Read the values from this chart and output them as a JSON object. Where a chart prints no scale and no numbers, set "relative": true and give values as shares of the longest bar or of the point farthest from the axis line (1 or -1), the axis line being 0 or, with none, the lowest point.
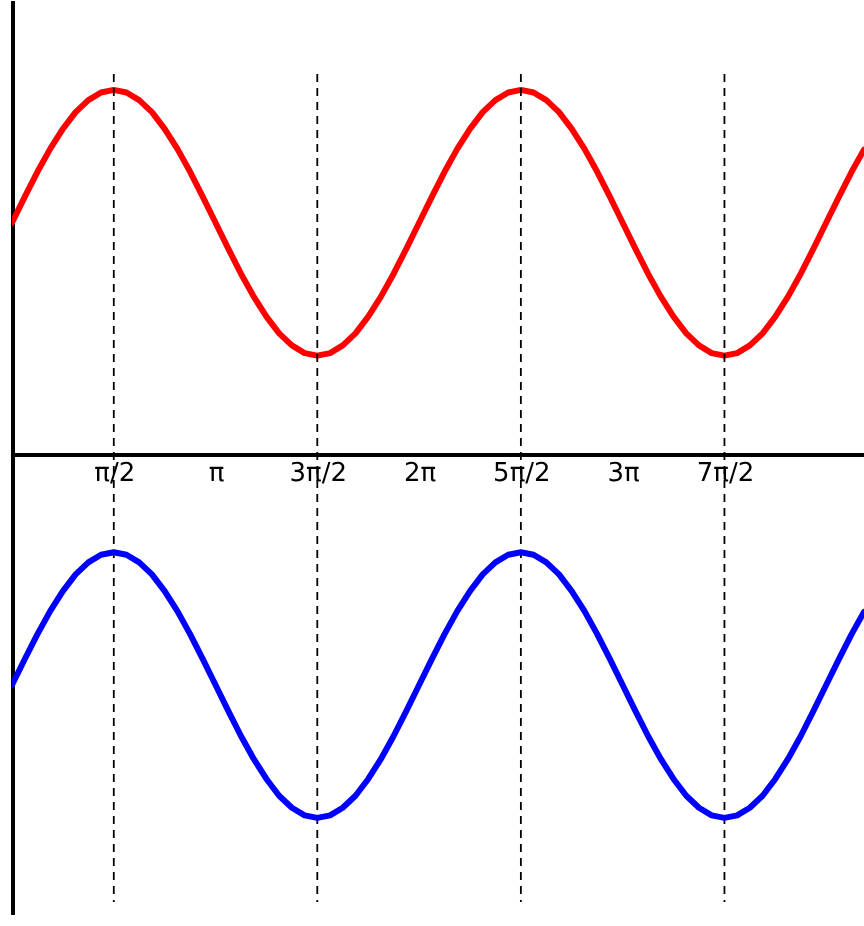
{
  "chart_data": {
    "type": "line",
    "relative": true,
    "tick_labels": "x",
    "xlim": [
      0,
      13.15
    ],
    "xticks": [
      {
        "value": 1.571,
        "label": "π/2"
      },
      {
        "value": 3.142,
        "label": "π"
      },
      {
        "value": 4.712,
        "label": "3π/2"
      },
      {
        "value": 6.283,
        "label": "2π"
      },
      {
        "value": 7.854,
        "label": "5π/2"
      },
      {
        "value": 9.425,
        "label": "3π"
      },
      {
        "value": 10.996,
        "label": "7π/2"
      }
    ],
    "x": [
      0,
      0.196,
      0.393,
      0.589,
      0.785,
      0.982,
      1.178,
      1.374,
      1.571,
      1.767,
      1.963,
      2.16,
      2.356,
      2.553,
      2.749,
      2.945,
      3.142,
      3.338,
      3.534,
      3.731,
      3.927,
      4.123,
      4.32,
      4.516,
      4.712,
      4.909,
      5.105,
      5.301,
      5.498,
      5.694,
      5.89,
      6.087,
      6.283,
      6.48,
      6.676,
      6.872,
      7.069,
      7.265,
      7.461,
      7.658,
      7.854,
      8.05,
      8.247,
      8.443,
      8.639,
      8.836,
      9.032,
      9.229,
      9.425,
      9.621,
      9.817,
      10.014,
      10.21,
      10.407,
      10.603,
      10.799,
      10.996,
      11.192,
      11.388,
      11.585,
      11.781,
      11.977,
      12.174,
      12.37,
      12.566,
      12.763,
      12.959,
      13.15
    ],
    "series": [
      {
        "color": "#ff0000",
        "values": [
          0.635,
          0.706,
          0.775,
          0.838,
          0.893,
          0.939,
          0.972,
          0.993,
          1.0,
          0.993,
          0.972,
          0.939,
          0.893,
          0.838,
          0.775,
          0.706,
          0.635,
          0.564,
          0.495,
          0.432,
          0.377,
          0.331,
          0.298,
          0.277,
          0.27,
          0.277,
          0.298,
          0.331,
          0.377,
          0.432,
          0.495,
          0.564,
          0.635,
          0.706,
          0.775,
          0.838,
          0.893,
          0.939,
          0.972,
          0.993,
          1.0,
          0.993,
          0.972,
          0.939,
          0.893,
          0.838,
          0.775,
          0.706,
          0.635,
          0.564,
          0.495,
          0.432,
          0.377,
          0.331,
          0.298,
          0.277,
          0.27,
          0.277,
          0.298,
          0.331,
          0.377,
          0.432,
          0.495,
          0.564,
          0.635,
          0.706,
          0.775,
          0.836
        ]
      },
      {
        "color": "#0000ff",
        "values": [
          -0.635,
          -0.564,
          -0.495,
          -0.432,
          -0.377,
          -0.331,
          -0.298,
          -0.277,
          -0.27,
          -0.277,
          -0.298,
          -0.331,
          -0.377,
          -0.432,
          -0.495,
          -0.564,
          -0.635,
          -0.706,
          -0.775,
          -0.838,
          -0.893,
          -0.939,
          -0.972,
          -0.993,
          -1.0,
          -0.993,
          -0.972,
          -0.939,
          -0.893,
          -0.838,
          -0.775,
          -0.706,
          -0.635,
          -0.564,
          -0.495,
          -0.432,
          -0.377,
          -0.331,
          -0.298,
          -0.277,
          -0.27,
          -0.277,
          -0.298,
          -0.331,
          -0.377,
          -0.432,
          -0.495,
          -0.564,
          -0.635,
          -0.706,
          -0.775,
          -0.838,
          -0.893,
          -0.939,
          -0.972,
          -0.993,
          -1.0,
          -0.993,
          -0.972,
          -0.939,
          -0.893,
          -0.838,
          -0.775,
          -0.706,
          -0.635,
          -0.564,
          -0.495,
          -0.434
        ]
      }
    ],
    "ref_lines": [
      {
        "axis": "x",
        "value": 1.571,
        "line_style": "dashed",
        "color": "#000000"
      },
      {
        "axis": "x",
        "value": 4.712,
        "line_style": "dashed",
        "color": "#000000"
      },
      {
        "axis": "x",
        "value": 7.854,
        "line_style": "dashed",
        "color": "#000000"
      },
      {
        "axis": "x",
        "value": 10.996,
        "line_style": "dashed",
        "color": "#000000"
      }
    ]
  }
}
